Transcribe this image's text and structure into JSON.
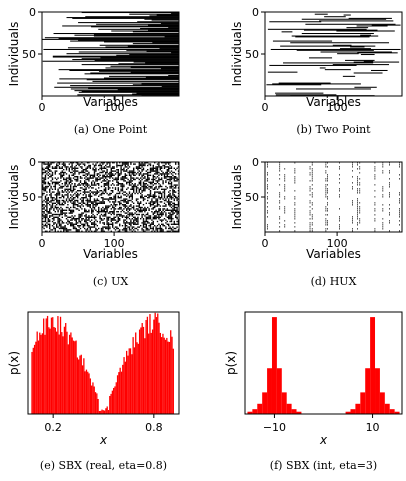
{
  "chart_data": [
    {
      "id": "a",
      "type": "heatmap",
      "caption": "(a)    One Point",
      "pattern": "one-point",
      "xlabel": "Variables",
      "ylabel": "Individuals",
      "xlim": [
        0,
        190
      ],
      "ylim": [
        100,
        0
      ],
      "xticks": [
        0,
        100
      ],
      "yticks": [
        0,
        50
      ]
    },
    {
      "id": "b",
      "type": "heatmap",
      "caption": "(b) Two Point",
      "pattern": "two-point",
      "xlabel": "Variables",
      "ylabel": "Individuals",
      "xlim": [
        0,
        190
      ],
      "ylim": [
        100,
        0
      ],
      "xticks": [
        0,
        100
      ],
      "yticks": [
        0,
        50
      ]
    },
    {
      "id": "c",
      "type": "heatmap",
      "caption": "(c) UX",
      "pattern": "uniform",
      "xlabel": "Variables",
      "ylabel": "Individuals",
      "xlim": [
        0,
        190
      ],
      "ylim": [
        100,
        0
      ],
      "xticks": [
        0,
        100
      ],
      "yticks": [
        0,
        50
      ]
    },
    {
      "id": "d",
      "type": "heatmap",
      "caption": "(d) HUX",
      "pattern": "columns",
      "columns": [
        3,
        20,
        27,
        41,
        62,
        65,
        84,
        86,
        103,
        121,
        128,
        131,
        152,
        163,
        172,
        186
      ],
      "xlabel": "Variables",
      "ylabel": "Individuals",
      "xlim": [
        0,
        190
      ],
      "ylim": [
        100,
        0
      ],
      "xticks": [
        0,
        100
      ],
      "yticks": [
        0,
        50
      ]
    },
    {
      "id": "e",
      "type": "bar",
      "caption": "(e) SBX (real, eta=0.8)",
      "xlabel": "x",
      "ylabel": "p(x)",
      "xlim": [
        0.05,
        0.95
      ],
      "xticks": [
        0.2,
        0.8
      ],
      "color": "#ff0000",
      "peaks": [
        0.2,
        0.8
      ],
      "peak_height": 0.9,
      "gap_height": 0.03,
      "range": [
        0.07,
        0.92
      ]
    },
    {
      "id": "f",
      "type": "bar",
      "caption": "(f) SBX (int, eta=3)",
      "xlabel": "x",
      "ylabel": "p(x)",
      "xlim": [
        -16,
        16
      ],
      "xticks": [
        -10,
        10
      ],
      "color": "#ff0000",
      "peaks": [
        -10,
        10
      ],
      "peak_height": 0.95
    }
  ]
}
